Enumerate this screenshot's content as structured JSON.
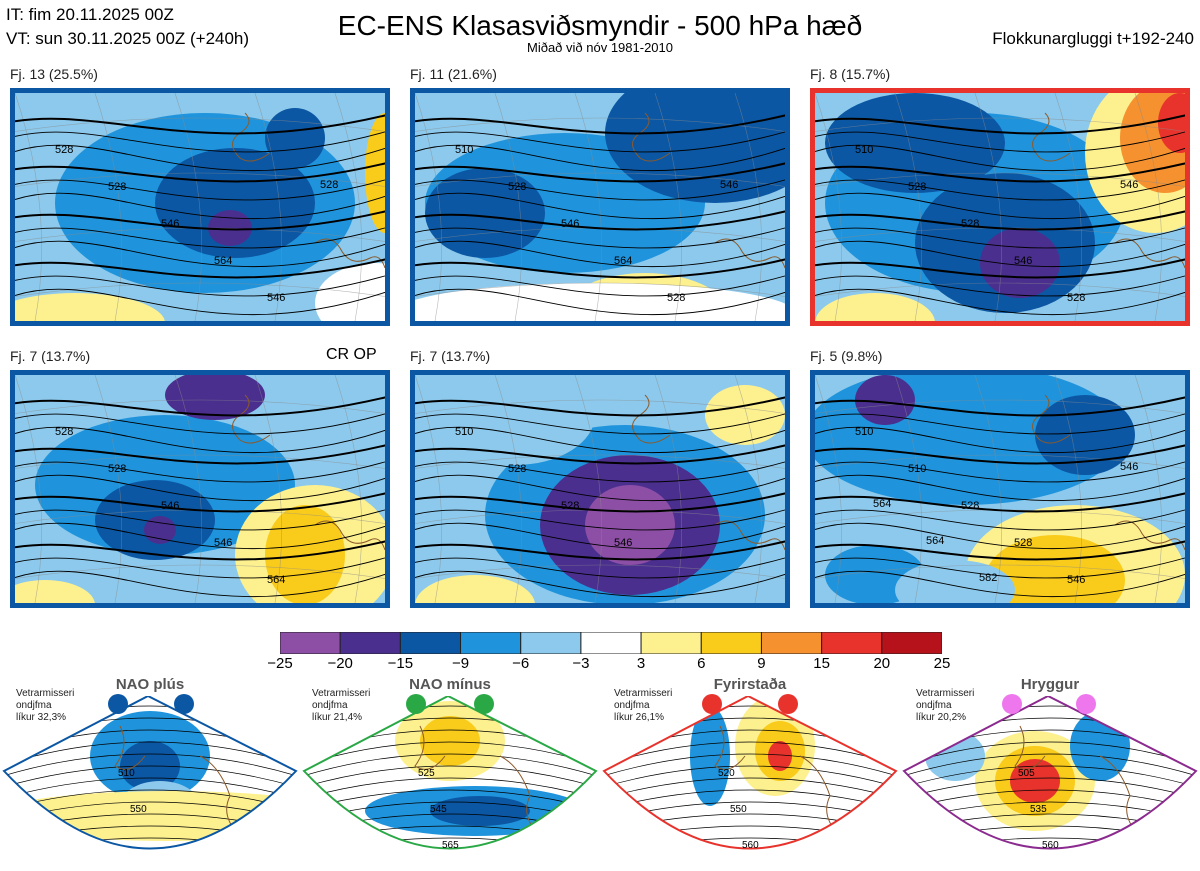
{
  "header": {
    "it": "IT: fim 20.11.2025 00Z",
    "vt": "VT: sun 30.11.2025 00Z  (+240h)",
    "title": "EC-ENS Klasasviðsmyndir - 500 hPa hæð",
    "subtitle": "Miðað við nóv 1981-2010",
    "window": "Flokkunargluggi t+192-240"
  },
  "clusters": [
    {
      "label": "Fj. 13 (25.5%)",
      "members": 13,
      "percent": 25.5,
      "border": "#0b57a4",
      "contours": [
        "528",
        "528",
        "546",
        "564",
        "546",
        "528"
      ],
      "extra": ""
    },
    {
      "label": "Fj. 11 (21.6%)",
      "members": 11,
      "percent": 21.6,
      "border": "#0b57a4",
      "contours": [
        "510",
        "528",
        "546",
        "564",
        "528",
        "546"
      ],
      "extra": ""
    },
    {
      "label": "Fj. 8 (15.7%)",
      "members": 8,
      "percent": 15.7,
      "border": "#e8332d",
      "contours": [
        "510",
        "528",
        "528",
        "546",
        "528",
        "546"
      ],
      "extra": ""
    },
    {
      "label": "Fj. 7 (13.7%)",
      "members": 7,
      "percent": 13.7,
      "border": "#0b57a4",
      "contours": [
        "528",
        "528",
        "546",
        "546",
        "564"
      ],
      "extra": "CR OP"
    },
    {
      "label": "Fj. 7 (13.7%)",
      "members": 7,
      "percent": 13.7,
      "border": "#0b57a4",
      "contours": [
        "510",
        "528",
        "528",
        "546"
      ],
      "extra": ""
    },
    {
      "label": "Fj. 5 (9.8%)",
      "members": 5,
      "percent": 9.8,
      "border": "#0b57a4",
      "contours": [
        "510",
        "510",
        "528",
        "528",
        "546",
        "546",
        "564",
        "564",
        "582"
      ],
      "extra": ""
    }
  ],
  "colorbar": {
    "ticks": [
      "−25",
      "−20",
      "−15",
      "−9",
      "−6",
      "−3",
      "3",
      "6",
      "9",
      "15",
      "20",
      "25"
    ],
    "colors": [
      "#8c4fa5",
      "#4b2f8f",
      "#0b57a4",
      "#1f94dc",
      "#8cc9ec",
      "#ffffff",
      "#fdf08f",
      "#f9cb1b",
      "#f5912f",
      "#e8332d",
      "#b5121b"
    ]
  },
  "regimes": [
    {
      "name": "NAO plús",
      "note": [
        "Vetrarmisseri",
        "ondjfma",
        "líkur 32,3%"
      ],
      "probability": 32.3,
      "color": "#0b57a4",
      "contours": [
        "510",
        "550"
      ]
    },
    {
      "name": "NAO mínus",
      "note": [
        "Vetrarmisseri",
        "ondjfma",
        "líkur 21,4%"
      ],
      "probability": 21.4,
      "color": "#2aa845",
      "contours": [
        "525",
        "545",
        "565"
      ]
    },
    {
      "name": "Fyrirstaða",
      "note": [
        "Vetrarmisseri",
        "ondjfma",
        "líkur 26,1%"
      ],
      "probability": 26.1,
      "color": "#e8332d",
      "contours": [
        "520",
        "550",
        "560"
      ]
    },
    {
      "name": "Hryggur",
      "note": [
        "Vetrarmisseri",
        "ondjfma",
        "líkur 20,2%"
      ],
      "probability": 20.2,
      "color": "#8b2a8f",
      "contours": [
        "505",
        "535",
        "560"
      ]
    }
  ],
  "chart_data": {
    "type": "heatmap",
    "title": "EC-ENS Klasasviðsmyndir - 500 hPa hæð",
    "variable": "500 hPa geopotential height (dam) with anomaly shading",
    "colorbar_bounds": [
      -25,
      -20,
      -15,
      -9,
      -6,
      -3,
      3,
      6,
      9,
      15,
      20,
      25
    ],
    "clusters": [
      {
        "id": 13,
        "percent": 25.5
      },
      {
        "id": 11,
        "percent": 21.6
      },
      {
        "id": 8,
        "percent": 15.7
      },
      {
        "id": 7,
        "percent": 13.7
      },
      {
        "id": 7,
        "percent": 13.7
      },
      {
        "id": 5,
        "percent": 9.8
      }
    ],
    "regime_probabilities": [
      {
        "name": "NAO plús",
        "value": 32.3
      },
      {
        "name": "NAO mínus",
        "value": 21.4
      },
      {
        "name": "Fyrirstaða",
        "value": 26.1
      },
      {
        "name": "Hryggur",
        "value": 20.2
      }
    ]
  }
}
